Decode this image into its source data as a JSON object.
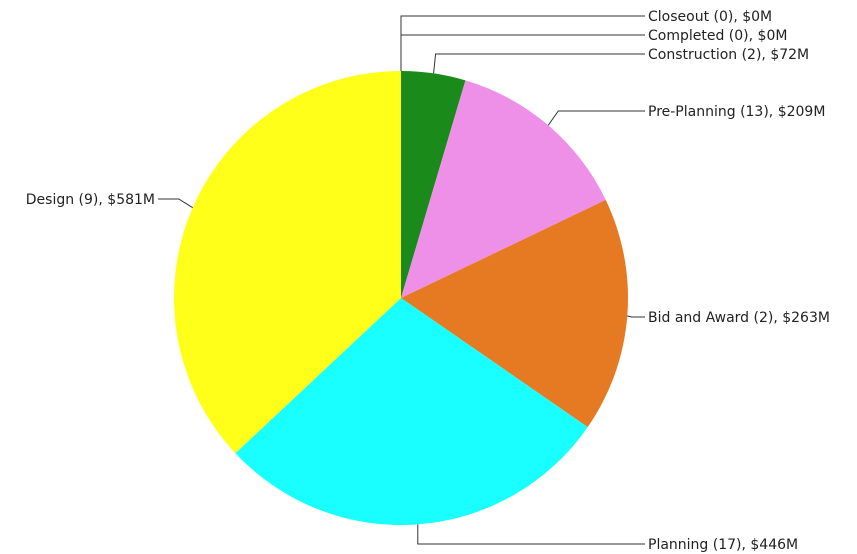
{
  "chart_data": {
    "type": "pie",
    "title": "",
    "slices": [
      {
        "category": "Closeout",
        "count": 0,
        "value": 0,
        "label": "Closeout (0), $0M",
        "color": "#1a8a1a"
      },
      {
        "category": "Completed",
        "count": 0,
        "value": 0,
        "label": "Completed (0), $0M",
        "color": "#2a2a2a"
      },
      {
        "category": "Construction",
        "count": 2,
        "value": 72,
        "label": "Construction (2), $72M",
        "color": "#1a8a1a"
      },
      {
        "category": "Pre-Planning",
        "count": 13,
        "value": 209,
        "label": "Pre-Planning (13), $209M",
        "color": "#ee90e8"
      },
      {
        "category": "Bid and Award",
        "count": 2,
        "value": 263,
        "label": "Bid and Award (2), $263M",
        "color": "#e67a22"
      },
      {
        "category": "Planning",
        "count": 17,
        "value": 446,
        "label": "Planning (17), $446M",
        "color": "#19ffff"
      },
      {
        "category": "Design",
        "count": 9,
        "value": 581,
        "label": "Design (9), $581M",
        "color": "#ffff19"
      }
    ],
    "units": "$M",
    "start_angle": "12 o'clock",
    "direction": "clockwise",
    "legend": "none"
  }
}
